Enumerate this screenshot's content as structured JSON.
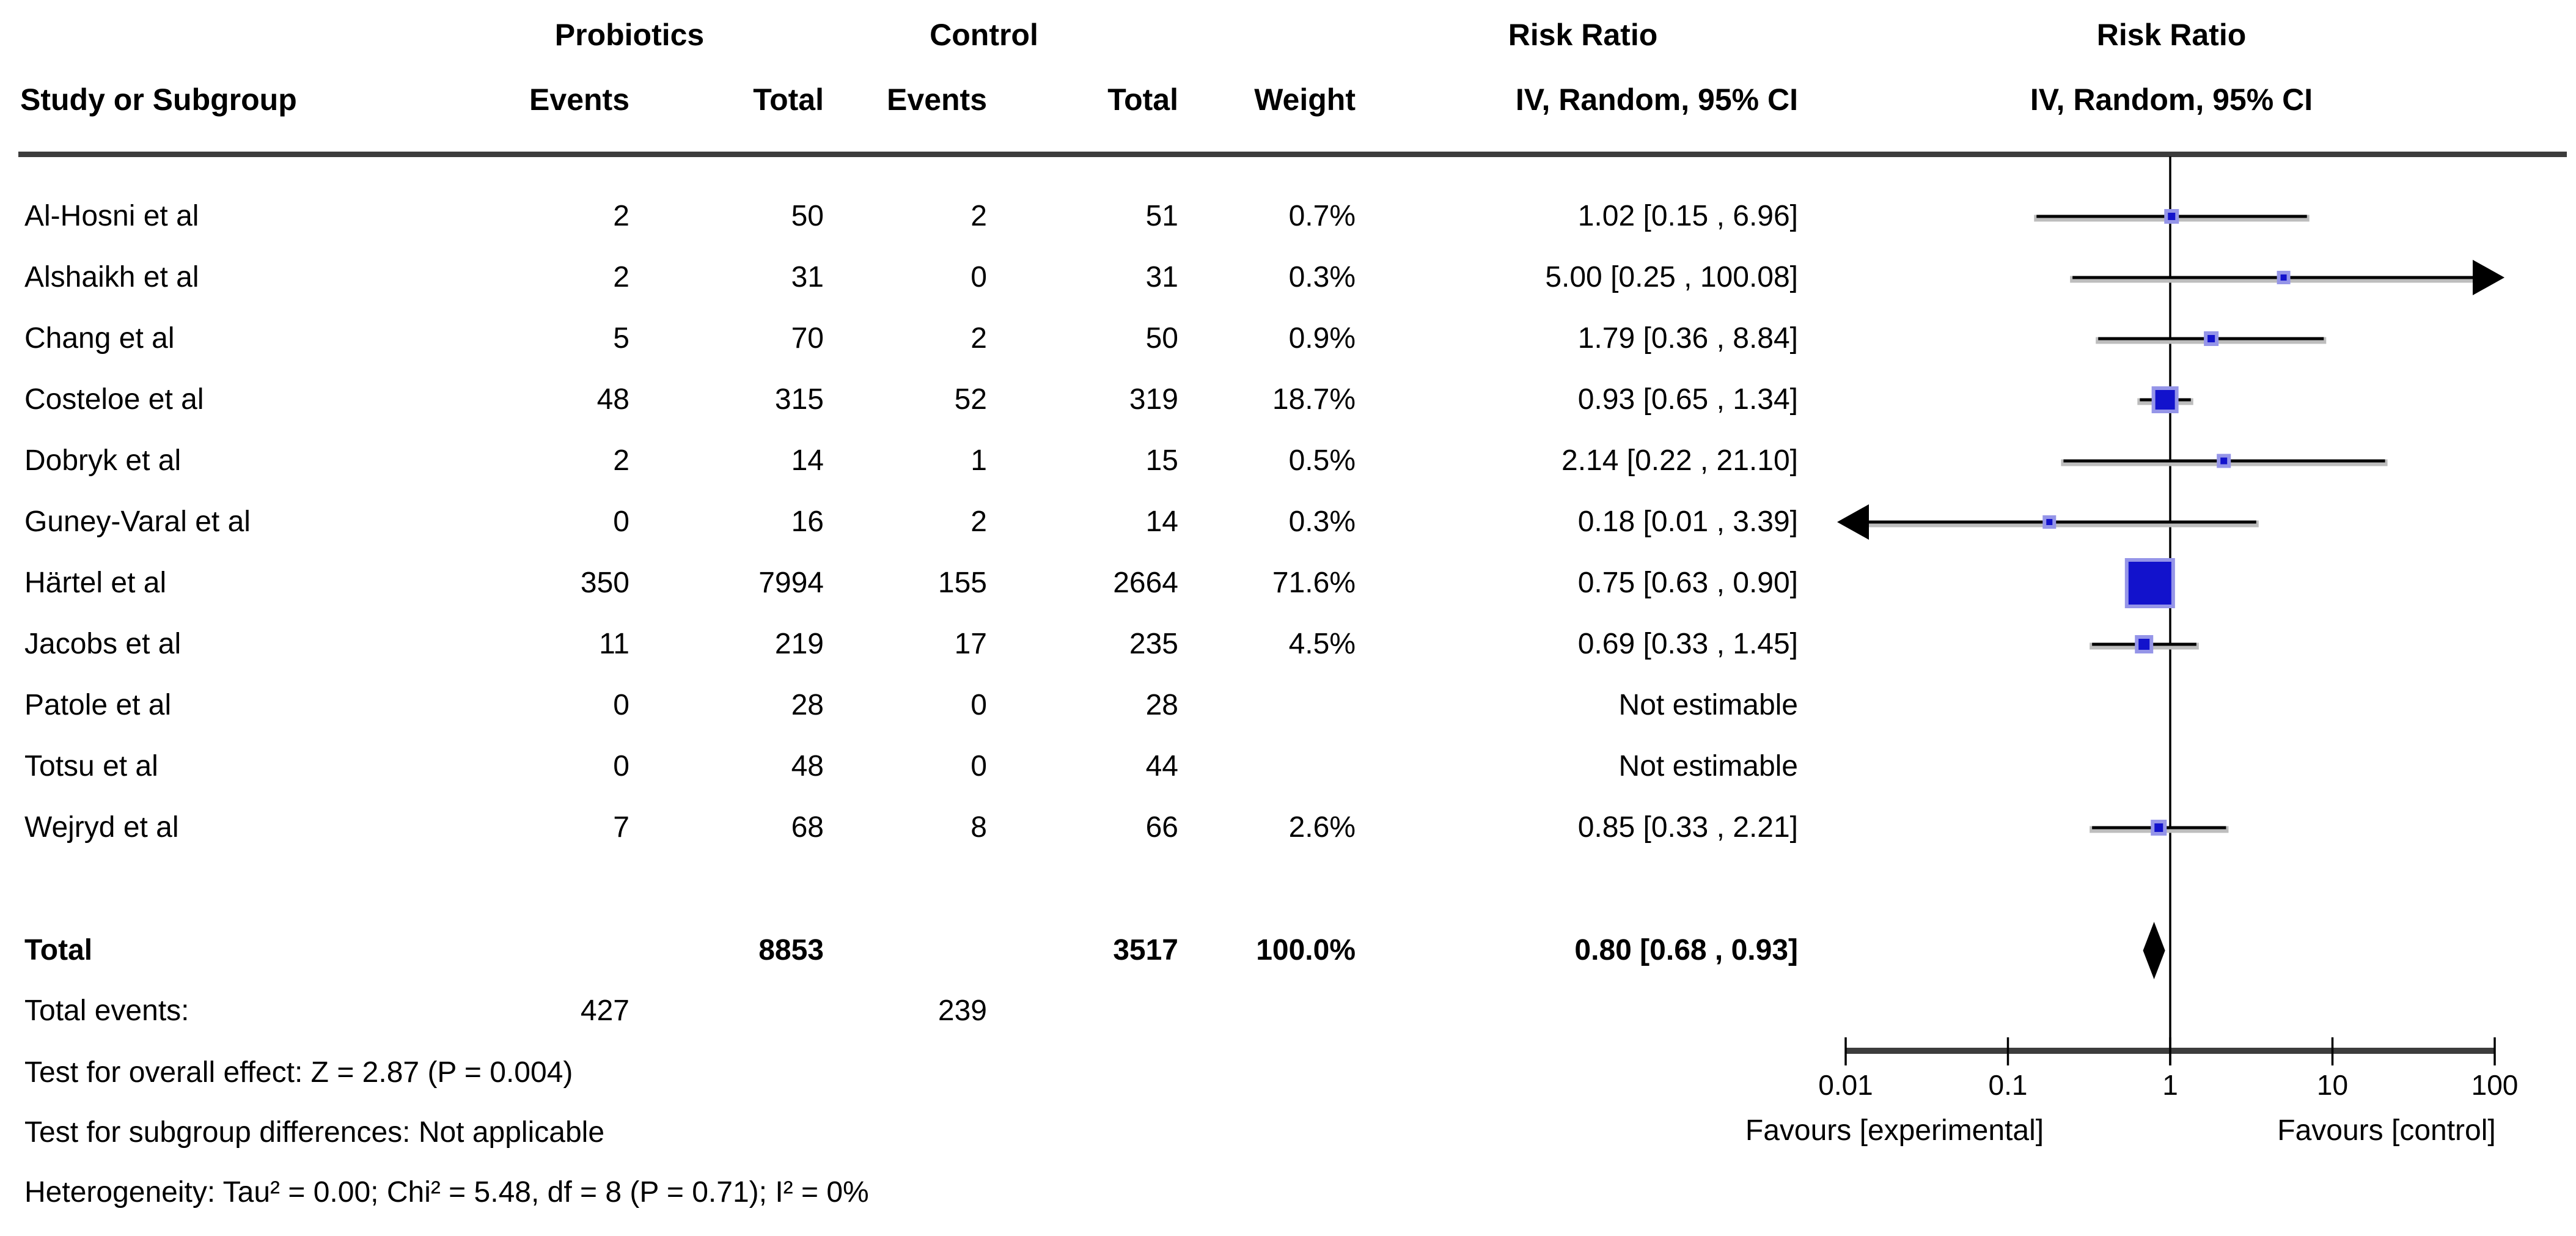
{
  "headers": {
    "group_experimental": "Probiotics",
    "group_control": "Control",
    "risk_ratio_left": "Risk Ratio",
    "risk_ratio_right": "Risk Ratio",
    "study": "Study or Subgroup",
    "events_exp": "Events",
    "total_exp": "Total",
    "events_ctrl": "Events",
    "total_ctrl": "Total",
    "weight": "Weight",
    "method_left": "IV, Random, 95% CI",
    "method_right": "IV, Random, 95% CI"
  },
  "chart_data": {
    "type": "forest",
    "effect_measure": "Risk Ratio",
    "model": "IV, Random, 95% CI",
    "x_axis": {
      "scale": "log",
      "ticks": [
        0.01,
        0.1,
        1,
        10,
        100
      ],
      "tick_labels": [
        "0.01",
        "0.1",
        "1",
        "10",
        "100"
      ],
      "favours_left": "Favours [experimental]",
      "favours_right": "Favours [control]"
    },
    "studies": [
      {
        "name": "Al-Hosni et al",
        "events_exp": "2",
        "total_exp": "50",
        "events_ctrl": "2",
        "total_ctrl": "51",
        "weight": "0.7%",
        "ci_text": "1.02 [0.15 , 6.96]",
        "rr": 1.02,
        "ci_low": 0.15,
        "ci_high": 6.96,
        "estimable": true,
        "marker_size": 18,
        "arrow_left": false,
        "arrow_right": false
      },
      {
        "name": "Alshaikh et al",
        "events_exp": "2",
        "total_exp": "31",
        "events_ctrl": "0",
        "total_ctrl": "31",
        "weight": "0.3%",
        "ci_text": "5.00 [0.25 , 100.08]",
        "rr": 5.0,
        "ci_low": 0.25,
        "ci_high": 100.08,
        "estimable": true,
        "marker_size": 16,
        "arrow_left": false,
        "arrow_right": true
      },
      {
        "name": "Chang et al",
        "events_exp": "5",
        "total_exp": "70",
        "events_ctrl": "2",
        "total_ctrl": "50",
        "weight": "0.9%",
        "ci_text": "1.79 [0.36 , 8.84]",
        "rr": 1.79,
        "ci_low": 0.36,
        "ci_high": 8.84,
        "estimable": true,
        "marker_size": 18,
        "arrow_left": false,
        "arrow_right": false
      },
      {
        "name": "Costeloe et al",
        "events_exp": "48",
        "total_exp": "315",
        "events_ctrl": "52",
        "total_ctrl": "319",
        "weight": "18.7%",
        "ci_text": "0.93 [0.65 , 1.34]",
        "rr": 0.93,
        "ci_low": 0.65,
        "ci_high": 1.34,
        "estimable": true,
        "marker_size": 38,
        "arrow_left": false,
        "arrow_right": false
      },
      {
        "name": "Dobryk et al",
        "events_exp": "2",
        "total_exp": "14",
        "events_ctrl": "1",
        "total_ctrl": "15",
        "weight": "0.5%",
        "ci_text": "2.14 [0.22 , 21.10]",
        "rr": 2.14,
        "ci_low": 0.22,
        "ci_high": 21.1,
        "estimable": true,
        "marker_size": 17,
        "arrow_left": false,
        "arrow_right": false
      },
      {
        "name": "Guney-Varal et al",
        "events_exp": "0",
        "total_exp": "16",
        "events_ctrl": "2",
        "total_ctrl": "14",
        "weight": "0.3%",
        "ci_text": "0.18 [0.01 , 3.39]",
        "rr": 0.18,
        "ci_low": 0.01,
        "ci_high": 3.39,
        "estimable": true,
        "marker_size": 16,
        "arrow_left": true,
        "arrow_right": false
      },
      {
        "name": "Härtel et al",
        "events_exp": "350",
        "total_exp": "7994",
        "events_ctrl": "155",
        "total_ctrl": "2664",
        "weight": "71.6%",
        "ci_text": "0.75 [0.63 , 0.90]",
        "rr": 0.75,
        "ci_low": 0.63,
        "ci_high": 0.9,
        "estimable": true,
        "marker_size": 76,
        "arrow_left": false,
        "arrow_right": false
      },
      {
        "name": "Jacobs et al",
        "events_exp": "11",
        "total_exp": "219",
        "events_ctrl": "17",
        "total_ctrl": "235",
        "weight": "4.5%",
        "ci_text": "0.69 [0.33 , 1.45]",
        "rr": 0.69,
        "ci_low": 0.33,
        "ci_high": 1.45,
        "estimable": true,
        "marker_size": 24,
        "arrow_left": false,
        "arrow_right": false
      },
      {
        "name": "Patole et al",
        "events_exp": "0",
        "total_exp": "28",
        "events_ctrl": "0",
        "total_ctrl": "28",
        "weight": "",
        "ci_text": "Not estimable",
        "rr": null,
        "ci_low": null,
        "ci_high": null,
        "estimable": false,
        "marker_size": 0,
        "arrow_left": false,
        "arrow_right": false
      },
      {
        "name": "Totsu et al",
        "events_exp": "0",
        "total_exp": "48",
        "events_ctrl": "0",
        "total_ctrl": "44",
        "weight": "",
        "ci_text": "Not estimable",
        "rr": null,
        "ci_low": null,
        "ci_high": null,
        "estimable": false,
        "marker_size": 0,
        "arrow_left": false,
        "arrow_right": false
      },
      {
        "name": "Wejryd et al",
        "events_exp": "7",
        "total_exp": "68",
        "events_ctrl": "8",
        "total_ctrl": "66",
        "weight": "2.6%",
        "ci_text": "0.85 [0.33 , 2.21]",
        "rr": 0.85,
        "ci_low": 0.33,
        "ci_high": 2.21,
        "estimable": true,
        "marker_size": 20,
        "arrow_left": false,
        "arrow_right": false
      }
    ],
    "total": {
      "label": "Total",
      "total_exp": "8853",
      "total_ctrl": "3517",
      "weight": "100.0%",
      "ci_text": "0.80 [0.68 , 0.93]",
      "rr": 0.8,
      "ci_low": 0.68,
      "ci_high": 0.93
    },
    "total_events": {
      "label": "Total events:",
      "events_exp": "427",
      "events_ctrl": "239"
    },
    "footnotes": [
      "Test for overall effect: Z = 2.87 (P = 0.004)",
      "Test for subgroup differences: Not applicable",
      "Heterogeneity: Tau² = 0.00; Chi² = 5.48, df = 8 (P = 0.71); I² = 0%"
    ],
    "colors": {
      "marker": "#1212cc",
      "marker_edge": "#9595e8",
      "line": "#000000",
      "halo": "#bdbdbd",
      "scale_bar": "#3d3d3d",
      "diamond": "#000000",
      "text": "#000000",
      "background": "#ffffff"
    }
  }
}
